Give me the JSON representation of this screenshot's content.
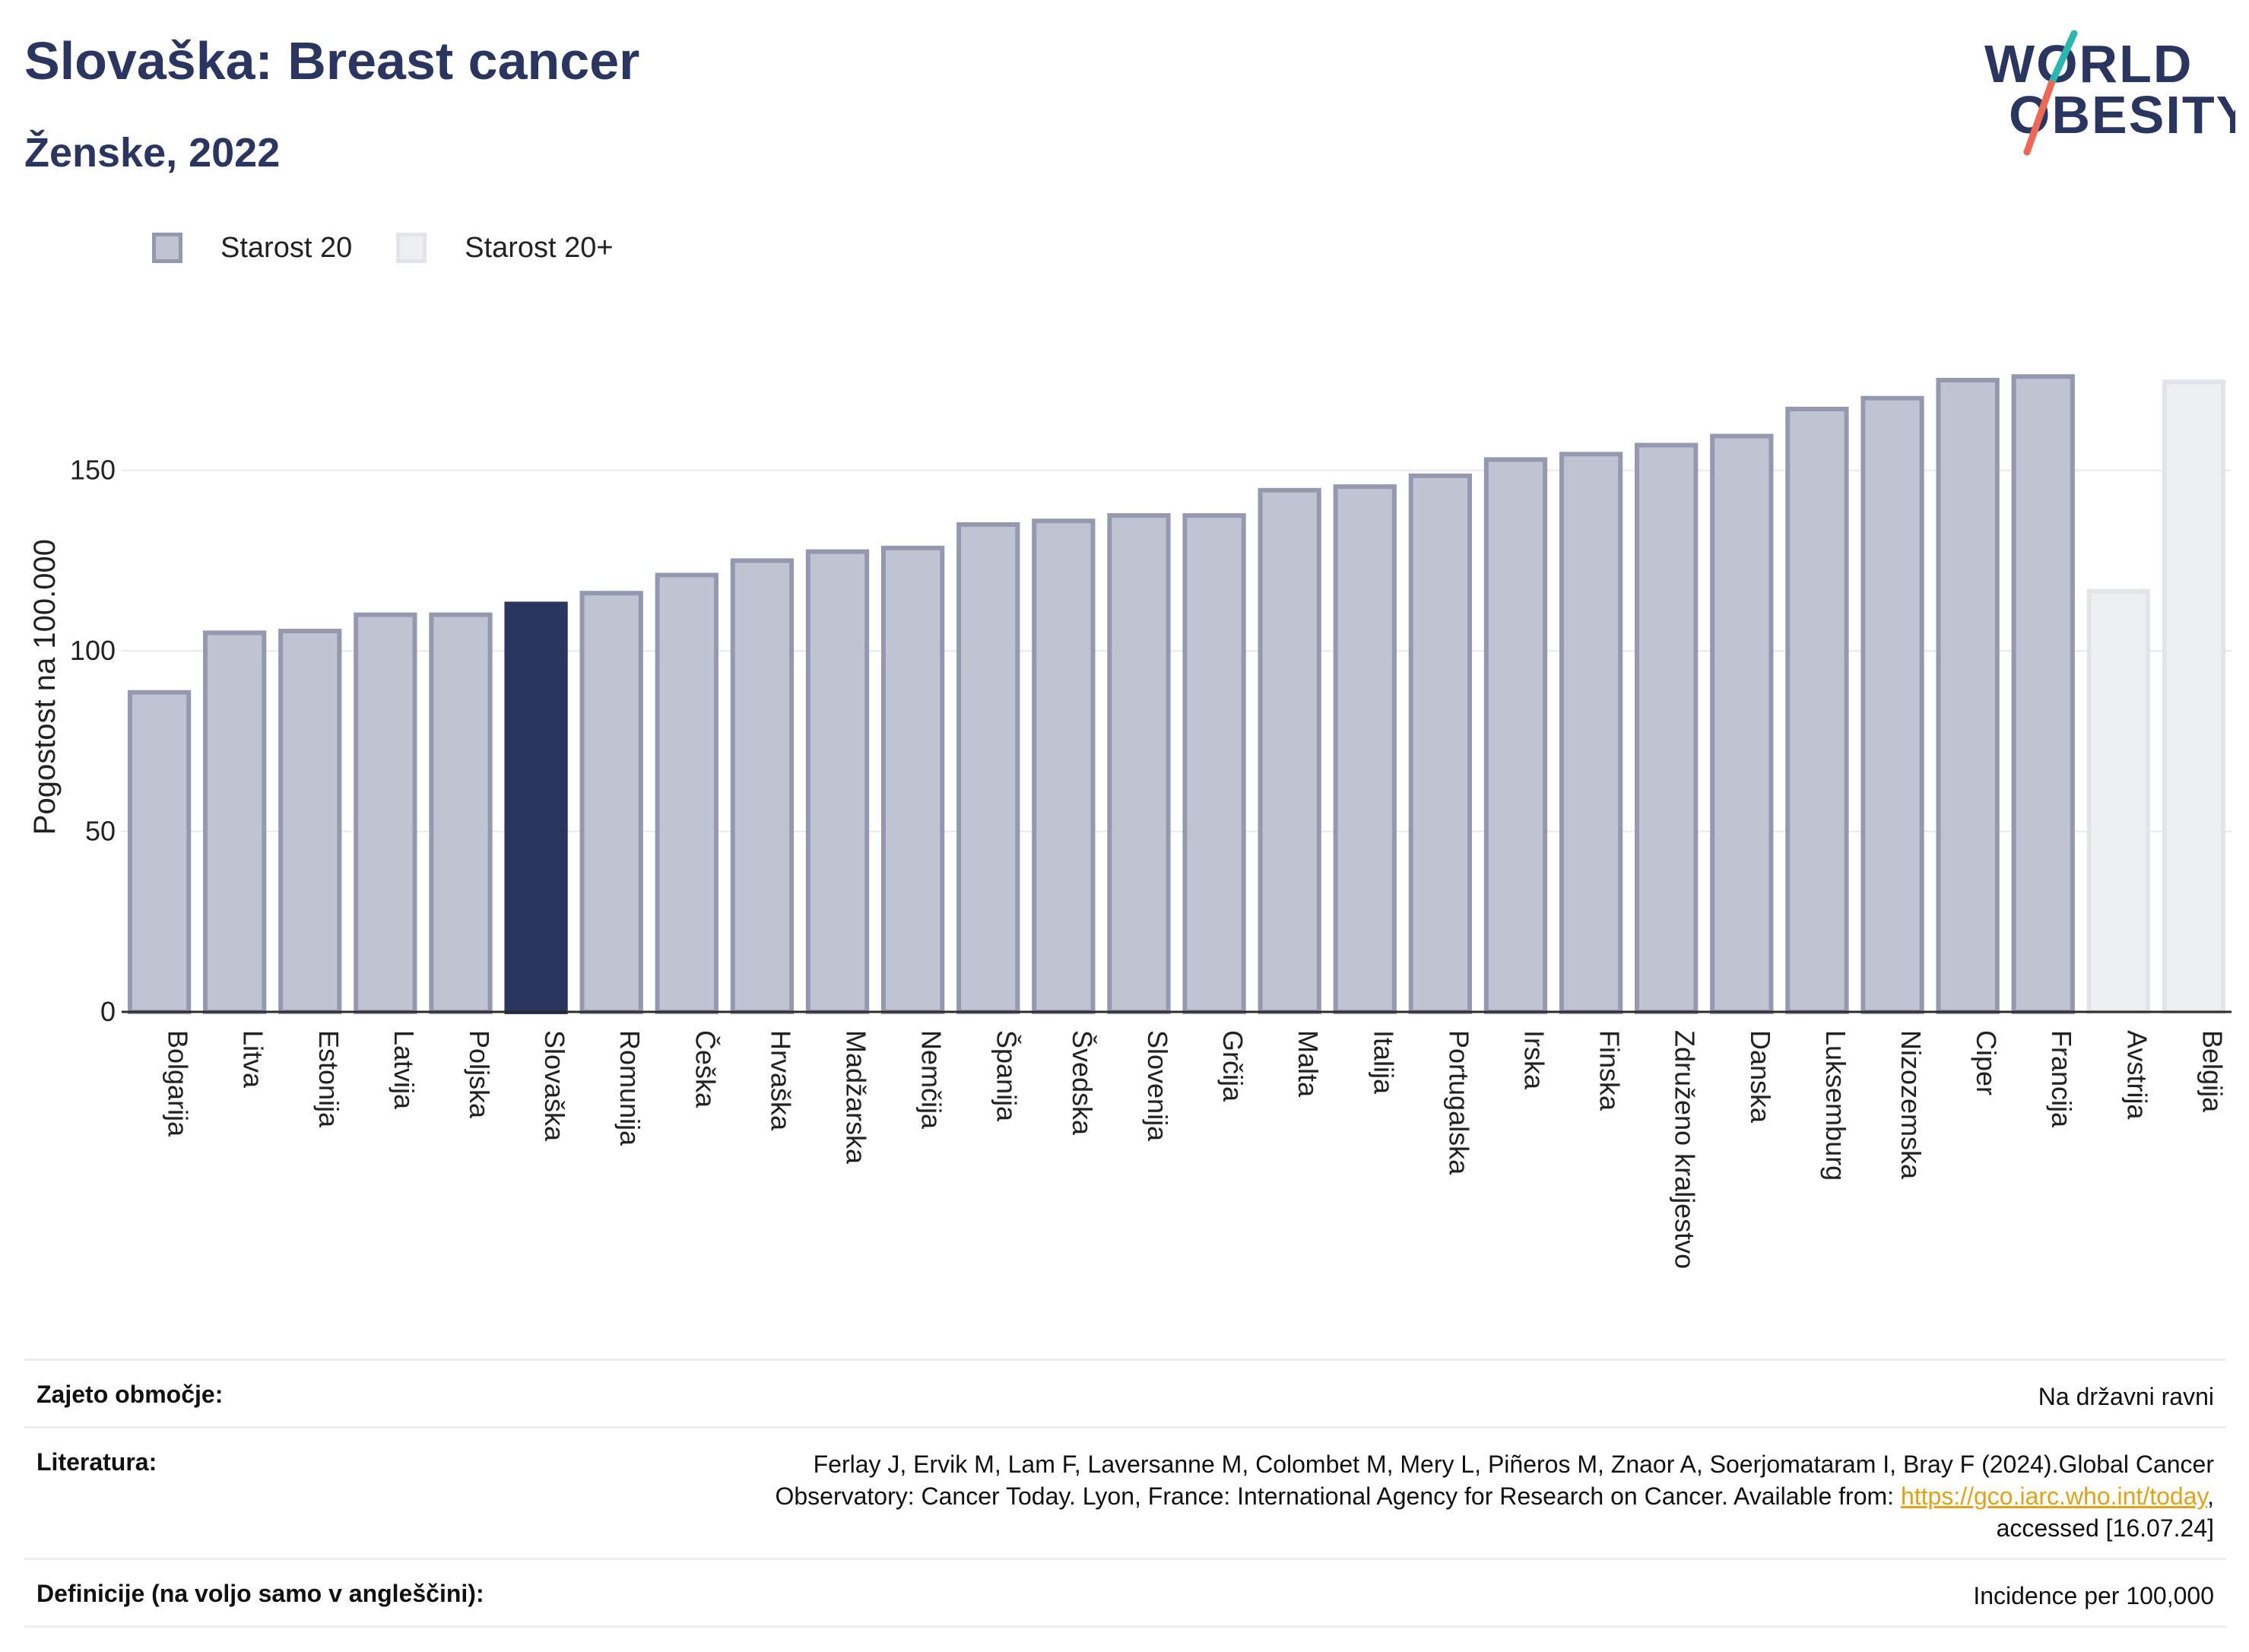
{
  "header": {
    "title": "Slovaška: Breast cancer",
    "subtitle": "Ženske, 2022"
  },
  "logo": {
    "line1": "WORLD",
    "line2": "OBESITY"
  },
  "colors": {
    "highlight": "#2b3660",
    "bar_fill": "#c0c3d1",
    "bar_stroke": "#9499b0",
    "bar_light_fill": "#eeeff3",
    "bar_light_stroke": "#e3e4ea",
    "logo_teal": "#2bb6b0",
    "logo_coral": "#ec6a55",
    "link": "#e1a21a"
  },
  "legend": {
    "items": [
      {
        "label": "Starost 20",
        "style": "age20"
      },
      {
        "label": "Starost 20+",
        "style": "age20plus"
      }
    ]
  },
  "chart_data": {
    "type": "bar",
    "ylabel": "Pogostost na 100.000",
    "ylim": [
      0,
      190
    ],
    "yticks": [
      0,
      50,
      100,
      150
    ],
    "grid": true,
    "highlight": "Slovaška",
    "categories": [
      "Bolgarija",
      "Litva",
      "Estonija",
      "Latvija",
      "Poljska",
      "Slovaška",
      "Romunija",
      "Češka",
      "Hrvaška",
      "Madžarska",
      "Nemčija",
      "Španija",
      "Švedska",
      "Slovenija",
      "Grčija",
      "Malta",
      "Italija",
      "Portugalska",
      "Irska",
      "Finska",
      "Združeno kraljestvo",
      "Danska",
      "Luksemburg",
      "Nizozemska",
      "Ciper",
      "Francija",
      "Avstrija",
      "Belgija"
    ],
    "values": [
      88.5,
      105,
      105.5,
      110,
      110,
      113,
      116,
      121,
      125,
      127.5,
      128.5,
      135,
      136,
      137.5,
      137.5,
      144.5,
      145.5,
      148.5,
      153,
      154.5,
      157,
      159.5,
      167,
      170,
      175,
      176,
      116.5,
      174.5
    ],
    "series_group": [
      "age20",
      "age20",
      "age20",
      "age20",
      "age20",
      "age20",
      "age20",
      "age20",
      "age20",
      "age20",
      "age20",
      "age20",
      "age20",
      "age20",
      "age20",
      "age20",
      "age20",
      "age20",
      "age20",
      "age20",
      "age20",
      "age20",
      "age20",
      "age20",
      "age20",
      "age20",
      "age20plus",
      "age20plus"
    ]
  },
  "footer": {
    "coverage_label": "Zajeto območje:",
    "coverage_value": "Na državni ravni",
    "literature_label": "Literatura:",
    "literature_text_1": "Ferlay J, Ervik M, Lam F, Laversanne M, Colombet M, Mery L, Piñeros M, Znaor A, Soerjomataram I, Bray F (2024).Global Cancer",
    "literature_text_2": "Observatory: Cancer Today. Lyon, France: International Agency for Research on Cancer. Available from: ",
    "literature_link": "https://gco.iarc.who.int/today",
    "literature_text_3": ",",
    "literature_text_4": "accessed [16.07.24]",
    "definitions_label": "Definicije (na voljo samo v angleščini):",
    "definitions_value": "Incidence per 100,000"
  }
}
